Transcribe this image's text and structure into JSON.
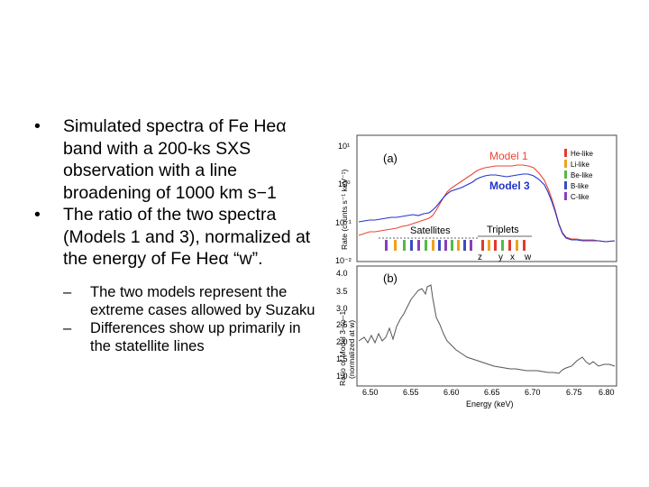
{
  "bullets": [
    "Simulated spectra of Fe Heα band with a 200-ks SXS observation with a line broadening of 1000 km s−1",
    "The ratio of the two spectra (Models 1 and 3), normalized at the energy of Fe Heα “w”."
  ],
  "sub_bullets": [
    "The two models represent the extreme cases allowed by Suzaku",
    "Differences show up primarily in the statellite lines"
  ],
  "bullet_char": "•",
  "dash_char": "–",
  "figure": {
    "panel_a": "(a)",
    "panel_b": "(b)",
    "model1_label": "Model 1",
    "model3_label": "Model 3",
    "model1_color": "#ee4433",
    "model3_color": "#2233cc",
    "satellites_label": "Satellites",
    "triplets_label": "Triplets",
    "triplet_letters": [
      "z",
      "y",
      "x",
      "w"
    ],
    "ylabel_a": "Rate (counts s⁻¹ keV⁻¹)",
    "ylabel_b_line1": "Ratio of Model 3–to–1",
    "ylabel_b_line2": "(normalized at w)",
    "xlabel": "Energy (keV)",
    "legend": [
      {
        "label": "He-like",
        "color": "#e23b2e"
      },
      {
        "label": "Li-like",
        "color": "#f0a020"
      },
      {
        "label": "Be-like",
        "color": "#56b948"
      },
      {
        "label": "B-like",
        "color": "#3b4cc0"
      },
      {
        "label": "C-like",
        "color": "#8a3fb8"
      }
    ],
    "x_ticks": [
      "6.50",
      "6.55",
      "6.60",
      "6.65",
      "6.70",
      "6.75",
      "6.80"
    ],
    "y_ticks_a": [
      "10¹",
      "10⁰",
      "10⁻¹",
      "10⁻²"
    ],
    "y_ticks_b": [
      "4.0",
      "3.5",
      "3.0",
      "2.5",
      "2.0",
      "1.5",
      "1.0"
    ]
  }
}
